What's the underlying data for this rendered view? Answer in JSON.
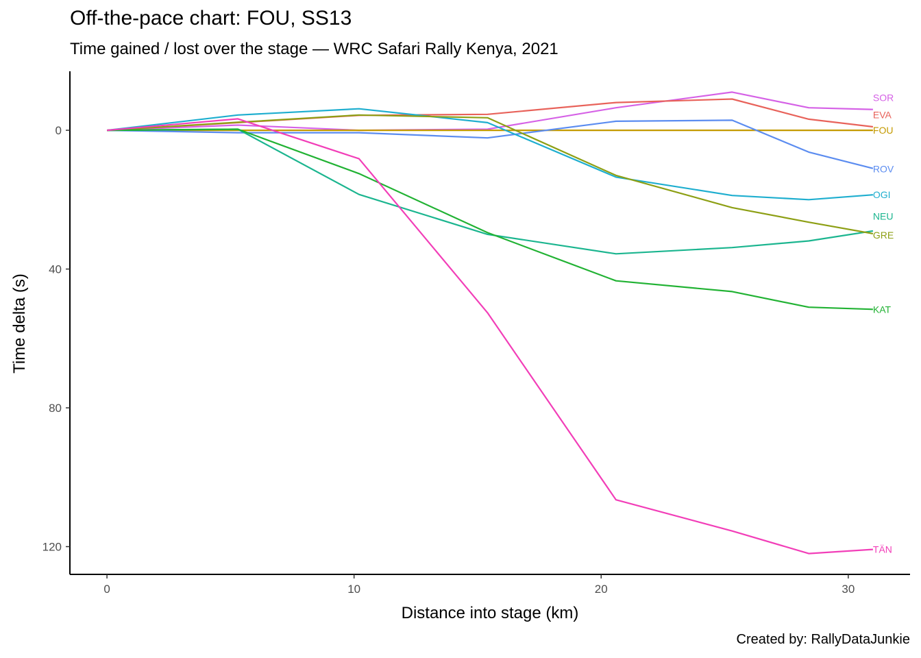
{
  "chart_data": {
    "type": "line",
    "title": "Off-the-pace chart: FOU, SS13",
    "subtitle": "Time gained / lost over the stage — WRC Safari Rally Kenya, 2021",
    "caption": "Created by: RallyDataJunkie",
    "xlabel": "Distance into stage (km)",
    "ylabel": "Time delta (s)",
    "xlim": [
      -1.5,
      32.5
    ],
    "ylim": [
      -17,
      128
    ],
    "y_reversed": true,
    "x_ticks": [
      0,
      10,
      20,
      30
    ],
    "y_ticks": [
      0,
      40,
      80,
      120
    ],
    "x_tick_labels": [
      "0",
      "10",
      "20",
      "30"
    ],
    "y_tick_labels": [
      "0",
      "40",
      "80",
      "120"
    ],
    "grid": false,
    "legend": "direct end-of-line labels",
    "series": [
      {
        "name": "SOR",
        "color": "#d561e6",
        "x": [
          0,
          5.3,
          10.2,
          15.4,
          20.6,
          25.3,
          28.4,
          31
        ],
        "y": [
          0,
          -1.5,
          0,
          -0.3,
          -6.5,
          -11,
          -6.5,
          -6
        ]
      },
      {
        "name": "EVA",
        "color": "#e8625a",
        "x": [
          0,
          5.3,
          10.2,
          15.4,
          20.6,
          25.3,
          28.4,
          31
        ],
        "y": [
          0,
          -2.2,
          -4.3,
          -4.6,
          -8,
          -9,
          -3.2,
          -1
        ]
      },
      {
        "name": "FOU",
        "color": "#c49a00",
        "x": [
          0,
          5.3,
          10.2,
          15.4,
          20.6,
          25.3,
          28.4,
          31
        ],
        "y": [
          0,
          0,
          0,
          0,
          0,
          0,
          0,
          0
        ]
      },
      {
        "name": "ROV",
        "color": "#5b8cf0",
        "x": [
          0,
          5.3,
          10.2,
          15.4,
          20.6,
          25.3,
          28.4,
          31
        ],
        "y": [
          0,
          0.7,
          0.7,
          2.2,
          -2.6,
          -2.9,
          6.3,
          11
        ]
      },
      {
        "name": "OGI",
        "color": "#1eaecf",
        "x": [
          0,
          5.3,
          10.2,
          15.4,
          20.6,
          25.3,
          28.4,
          31
        ],
        "y": [
          0,
          -4.4,
          -6.2,
          -2.2,
          13.5,
          18.8,
          20,
          18.6
        ]
      },
      {
        "name": "NEU",
        "color": "#1bb58f",
        "x": [
          0,
          5.3,
          10.2,
          15.4,
          20.6,
          25.3,
          28.4,
          31
        ],
        "y": [
          0,
          -0.3,
          18.5,
          30,
          35.6,
          33.8,
          31.9,
          29
        ]
      },
      {
        "name": "GRE",
        "color": "#8d9f14",
        "x": [
          0,
          5.3,
          10.2,
          15.4,
          20.6,
          25.3,
          28.4,
          31
        ],
        "y": [
          0,
          -2.3,
          -4.4,
          -3.6,
          13,
          22.3,
          26.5,
          29.8
        ]
      },
      {
        "name": "KAT",
        "color": "#21b233",
        "x": [
          0,
          5.3,
          10.2,
          15.4,
          20.6,
          25.3,
          28.4,
          31
        ],
        "y": [
          0,
          -0.3,
          12.5,
          29.5,
          43.4,
          46.5,
          51,
          51.6
        ]
      },
      {
        "name": "TÄN",
        "color": "#f23eb8",
        "x": [
          0,
          5.3,
          10.2,
          15.4,
          20.6,
          25.3,
          28.4,
          31
        ],
        "y": [
          0,
          -3.3,
          8.2,
          52.6,
          106.5,
          115.5,
          122,
          120.8
        ]
      }
    ]
  }
}
